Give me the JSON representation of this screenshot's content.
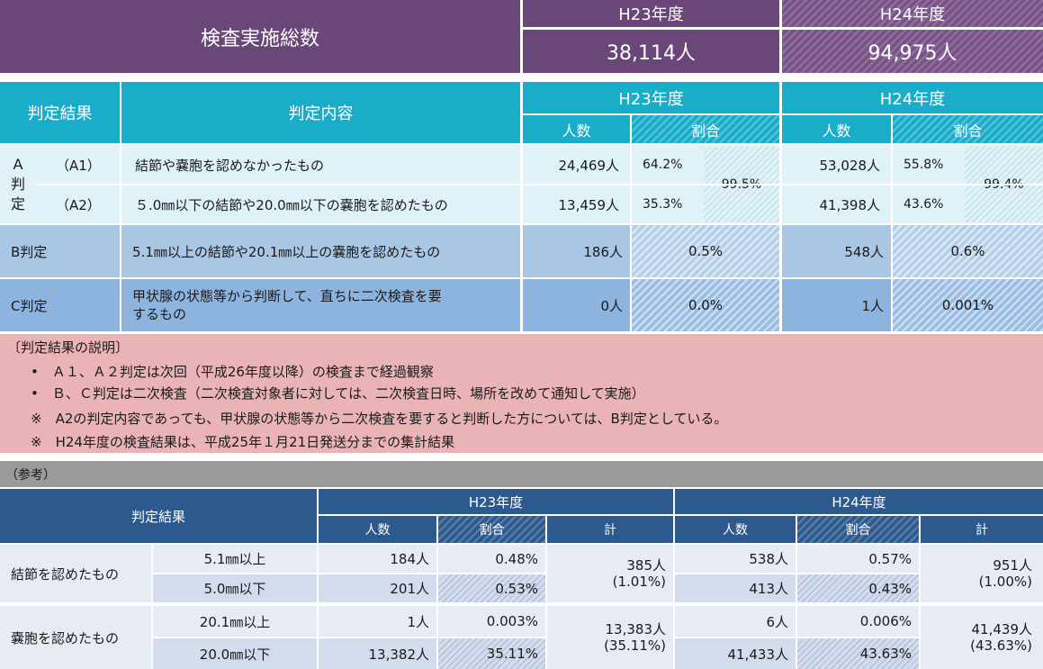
{
  "summary": {
    "title": "検査実施総数",
    "h23_label": "H23年度",
    "h24_label": "H24年度",
    "h23_total": "38,114人",
    "h24_total": "94,975人"
  },
  "main_table": {
    "col_result": "判定結果",
    "col_content": "判定内容",
    "h23": "H23年度",
    "h24": "H24年度",
    "count": "人数",
    "ratio": "割合",
    "a_label": "A\n判\n定",
    "rows": [
      {
        "code": "（A1）",
        "content": "結節や嚢胞を認めなかったもの",
        "h23_count": "24,469人",
        "h23_pct": "64.2%",
        "h24_count": "53,028人",
        "h24_pct": "55.8%"
      },
      {
        "code": "（A2）",
        "content": "５.0㎜以下の結節や20.0㎜以下の嚢胞を認めたもの",
        "h23_count": "13,459人",
        "h23_pct": "35.3%",
        "h24_count": "41,398人",
        "h24_pct": "43.6%"
      }
    ],
    "a_total_h23": "99.5%",
    "a_total_h24": "99.4%",
    "b": {
      "label": "B判定",
      "content": "5.1㎜以上の結節や20.1㎜以上の嚢胞を認めたもの",
      "h23_count": "186人",
      "h23_pct": "0.5%",
      "h24_count": "548人",
      "h24_pct": "0.6%"
    },
    "c": {
      "label": "C判定",
      "content_1": "甲状腺の状態等から判断して、直ちに二次検査を要",
      "content_2": "するもの",
      "h23_count": "0人",
      "h23_pct": "0.0%",
      "h24_count": "1人",
      "h24_pct": "0.001%"
    }
  },
  "notes": {
    "heading": "〔判定結果の説明〕",
    "items": [
      "•　Ａ１、Ａ２判定は次回（平成26年度以降）の検査まで経過観察",
      "•　Ｂ、Ｃ判定は二次検査（二次検査対象者に対しては、二次検査日時、場所を改めて通知して実施）",
      "※　A2の判定内容であっても、甲状腺の状態等から二次検査を要すると判断した方については、B判定としている。",
      "※　H24年度の検査結果は、平成25年１月21日発送分までの集計結果"
    ]
  },
  "reference": {
    "label": "（参考）",
    "col_result": "判定結果",
    "h23": "H23年度",
    "h24": "H24年度",
    "count": "人数",
    "ratio": "割合",
    "total": "計",
    "groups": [
      {
        "name": "結節を認めたもの",
        "rows": [
          {
            "size": "5.1㎜以上",
            "h23_count": "184人",
            "h23_pct": "0.48%",
            "h24_count": "538人",
            "h24_pct": "0.57%"
          },
          {
            "size": "5.0㎜以下",
            "h23_count": "201人",
            "h23_pct": "0.53%",
            "h24_count": "413人",
            "h24_pct": "0.43%"
          }
        ],
        "h23_total": "385人",
        "h23_total_pct": "(1.01%)",
        "h24_total": "951人",
        "h24_total_pct": "(1.00%)"
      },
      {
        "name": "嚢胞を認めたもの",
        "rows": [
          {
            "size": "20.1㎜以上",
            "h23_count": "1人",
            "h23_pct": "0.003%",
            "h24_count": "6人",
            "h24_pct": "0.006%"
          },
          {
            "size": "20.0㎜以下",
            "h23_count": "13,382人",
            "h23_pct": "35.11%",
            "h24_count": "41,433人",
            "h24_pct": "43.63%"
          }
        ],
        "h23_total": "13,383人",
        "h23_total_pct": "(35.11%)",
        "h24_total": "41,439人",
        "h24_total_pct": "(43.63%)"
      }
    ]
  }
}
